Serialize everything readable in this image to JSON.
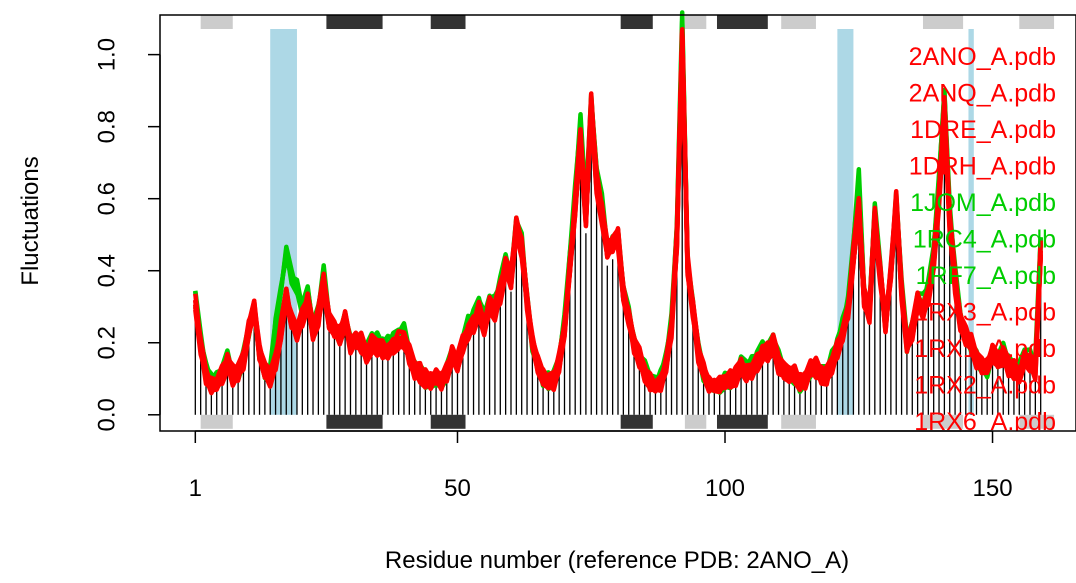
{
  "chart_data": {
    "type": "line",
    "xlabel": "Residue number (reference PDB: 2ANO_A)",
    "ylabel": "Fluctuations",
    "xlim": [
      -5.6,
      165.6
    ],
    "ylim": [
      -0.045,
      1.11
    ],
    "x_ticks": [
      1,
      50,
      100,
      150
    ],
    "y_ticks": [
      0.0,
      0.2,
      0.4,
      0.6,
      0.8,
      1.0
    ],
    "y_tick_labels": [
      "0.0",
      "0.2",
      "0.4",
      "0.6",
      "0.8",
      "1.0"
    ],
    "residue_count": 159,
    "highlight_regions": [
      [
        15,
        20
      ],
      [
        121,
        124
      ],
      [
        145.5,
        146.5
      ]
    ],
    "highlight_color": "#add8e6",
    "sse_bars": [
      {
        "start": 2,
        "end": 8,
        "type": "helix",
        "color": "#cccccc"
      },
      {
        "start": 25.5,
        "end": 36,
        "type": "sheet",
        "color": "#333333"
      },
      {
        "start": 45,
        "end": 51.5,
        "type": "sheet",
        "color": "#333333"
      },
      {
        "start": 80.5,
        "end": 86.5,
        "type": "sheet",
        "color": "#333333"
      },
      {
        "start": 92.5,
        "end": 96.5,
        "type": "helix",
        "color": "#cccccc"
      },
      {
        "start": 98.5,
        "end": 108,
        "type": "sheet",
        "color": "#333333"
      },
      {
        "start": 110.5,
        "end": 117,
        "type": "helix",
        "color": "#cccccc"
      },
      {
        "start": 137,
        "end": 144.5,
        "type": "helix",
        "color": "#cccccc"
      },
      {
        "start": 155,
        "end": 161.5,
        "type": "helix",
        "color": "#cccccc"
      }
    ],
    "keypoints": [
      [
        1,
        0.32
      ],
      [
        2,
        0.2
      ],
      [
        3,
        0.12
      ],
      [
        4,
        0.09
      ],
      [
        5,
        0.09
      ],
      [
        6,
        0.11
      ],
      [
        7,
        0.15
      ],
      [
        8,
        0.11
      ],
      [
        9,
        0.12
      ],
      [
        10,
        0.16
      ],
      [
        11,
        0.24
      ],
      [
        12,
        0.3
      ],
      [
        13,
        0.17
      ],
      [
        14,
        0.12
      ],
      [
        15,
        0.11
      ],
      [
        16,
        0.15
      ],
      [
        17,
        0.24
      ],
      [
        18,
        0.34
      ],
      [
        19,
        0.27
      ],
      [
        20,
        0.24
      ],
      [
        21,
        0.28
      ],
      [
        22,
        0.33
      ],
      [
        23,
        0.24
      ],
      [
        24,
        0.28
      ],
      [
        25,
        0.38
      ],
      [
        26,
        0.26
      ],
      [
        27,
        0.24
      ],
      [
        28,
        0.22
      ],
      [
        29,
        0.27
      ],
      [
        30,
        0.2
      ],
      [
        31,
        0.21
      ],
      [
        32,
        0.2
      ],
      [
        33,
        0.17
      ],
      [
        34,
        0.2
      ],
      [
        35,
        0.2
      ],
      [
        36,
        0.19
      ],
      [
        37,
        0.19
      ],
      [
        38,
        0.2
      ],
      [
        39,
        0.21
      ],
      [
        40,
        0.22
      ],
      [
        41,
        0.17
      ],
      [
        42,
        0.13
      ],
      [
        43,
        0.12
      ],
      [
        44,
        0.1
      ],
      [
        45,
        0.09
      ],
      [
        46,
        0.1
      ],
      [
        47,
        0.09
      ],
      [
        48,
        0.12
      ],
      [
        49,
        0.17
      ],
      [
        50,
        0.15
      ],
      [
        51,
        0.2
      ],
      [
        52,
        0.24
      ],
      [
        53,
        0.26
      ],
      [
        54,
        0.3
      ],
      [
        55,
        0.26
      ],
      [
        56,
        0.31
      ],
      [
        57,
        0.3
      ],
      [
        58,
        0.35
      ],
      [
        59,
        0.42
      ],
      [
        60,
        0.38
      ],
      [
        61,
        0.53
      ],
      [
        62,
        0.48
      ],
      [
        63,
        0.32
      ],
      [
        64,
        0.2
      ],
      [
        65,
        0.14
      ],
      [
        66,
        0.1
      ],
      [
        67,
        0.09
      ],
      [
        68,
        0.1
      ],
      [
        69,
        0.15
      ],
      [
        70,
        0.25
      ],
      [
        71,
        0.42
      ],
      [
        72,
        0.6
      ],
      [
        73,
        0.79
      ],
      [
        74,
        0.56
      ],
      [
        75,
        0.88
      ],
      [
        76,
        0.66
      ],
      [
        77,
        0.58
      ],
      [
        78,
        0.46
      ],
      [
        79,
        0.48
      ],
      [
        80,
        0.5
      ],
      [
        81,
        0.34
      ],
      [
        82,
        0.28
      ],
      [
        83,
        0.2
      ],
      [
        84,
        0.16
      ],
      [
        85,
        0.12
      ],
      [
        86,
        0.09
      ],
      [
        87,
        0.08
      ],
      [
        88,
        0.1
      ],
      [
        89,
        0.15
      ],
      [
        90,
        0.25
      ],
      [
        91,
        0.5
      ],
      [
        92,
        1.07
      ],
      [
        93,
        0.42
      ],
      [
        94,
        0.3
      ],
      [
        95,
        0.18
      ],
      [
        96,
        0.12
      ],
      [
        97,
        0.08
      ],
      [
        98,
        0.07
      ],
      [
        99,
        0.08
      ],
      [
        100,
        0.09
      ],
      [
        101,
        0.1
      ],
      [
        102,
        0.11
      ],
      [
        103,
        0.14
      ],
      [
        104,
        0.12
      ],
      [
        105,
        0.13
      ],
      [
        106,
        0.15
      ],
      [
        107,
        0.18
      ],
      [
        108,
        0.18
      ],
      [
        109,
        0.2
      ],
      [
        110,
        0.15
      ],
      [
        111,
        0.12
      ],
      [
        112,
        0.11
      ],
      [
        113,
        0.11
      ],
      [
        114,
        0.09
      ],
      [
        115,
        0.1
      ],
      [
        116,
        0.13
      ],
      [
        117,
        0.13
      ],
      [
        118,
        0.11
      ],
      [
        119,
        0.11
      ],
      [
        120,
        0.15
      ],
      [
        121,
        0.19
      ],
      [
        122,
        0.24
      ],
      [
        123,
        0.3
      ],
      [
        124,
        0.45
      ],
      [
        125,
        0.6
      ],
      [
        126,
        0.33
      ],
      [
        127,
        0.29
      ],
      [
        128,
        0.56
      ],
      [
        129,
        0.4
      ],
      [
        130,
        0.25
      ],
      [
        131,
        0.4
      ],
      [
        132,
        0.6
      ],
      [
        133,
        0.35
      ],
      [
        134,
        0.2
      ],
      [
        135,
        0.24
      ],
      [
        136,
        0.32
      ],
      [
        137,
        0.3
      ],
      [
        138,
        0.34
      ],
      [
        139,
        0.44
      ],
      [
        140,
        0.63
      ],
      [
        141,
        0.87
      ],
      [
        142,
        0.55
      ],
      [
        143,
        0.38
      ],
      [
        144,
        0.26
      ],
      [
        145,
        0.22
      ],
      [
        146,
        0.2
      ],
      [
        147,
        0.16
      ],
      [
        148,
        0.14
      ],
      [
        149,
        0.13
      ],
      [
        150,
        0.17
      ],
      [
        151,
        0.15
      ],
      [
        152,
        0.17
      ],
      [
        153,
        0.14
      ],
      [
        154,
        0.13
      ],
      [
        155,
        0.12
      ],
      [
        156,
        0.16
      ],
      [
        157,
        0.15
      ],
      [
        158,
        0.13
      ],
      [
        159,
        0.47
      ]
    ],
    "series": [
      {
        "name": "2ANO_A.pdb",
        "color": "#ff0000"
      },
      {
        "name": "2ANQ_A.pdb",
        "color": "#ff0000"
      },
      {
        "name": "1DRE_A.pdb",
        "color": "#ff0000"
      },
      {
        "name": "1DRH_A.pdb",
        "color": "#ff0000"
      },
      {
        "name": "1JOM_A.pdb",
        "color": "#00cd00"
      },
      {
        "name": "1RC4_A.pdb",
        "color": "#00cd00"
      },
      {
        "name": "1RF7_A.pdb",
        "color": "#00cd00"
      },
      {
        "name": "1RX3_A.pdb",
        "color": "#ff0000"
      },
      {
        "name": "1RX1_A.pdb",
        "color": "#ff0000"
      },
      {
        "name": "1RX2_A.pdb",
        "color": "#ff0000"
      },
      {
        "name": "1RX6_A.pdb",
        "color": "#ff0000"
      }
    ],
    "legend_position": "top-right",
    "grid": false
  }
}
